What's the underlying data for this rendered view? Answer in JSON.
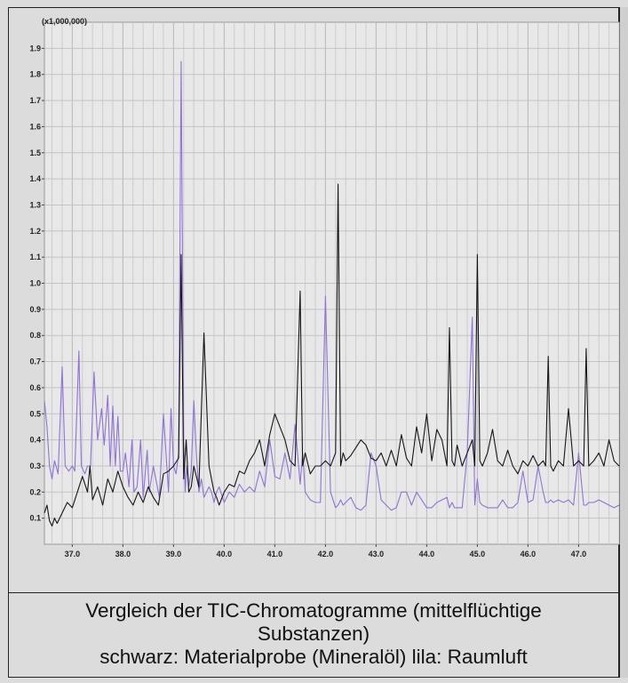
{
  "chart_data": {
    "type": "line",
    "y_scale_label": "(x1,000,000)",
    "xlim": [
      36.45,
      47.8
    ],
    "ylim": [
      0.0,
      2.0
    ],
    "x_ticks": [
      "37.0",
      "38.0",
      "39.0",
      "40.0",
      "41.0",
      "42.0",
      "43.0",
      "44.0",
      "45.0",
      "46.0",
      "47.0"
    ],
    "y_ticks": [
      "0.1",
      "0.2",
      "0.3",
      "0.4",
      "0.5",
      "0.6",
      "0.7",
      "0.8",
      "0.9",
      "1.0",
      "1.1",
      "1.2",
      "1.3",
      "1.4",
      "1.5",
      "1.6",
      "1.7",
      "1.8",
      "1.9"
    ],
    "grid": true,
    "series": [
      {
        "color": "#8f72d8",
        "x": [
          36.45,
          36.5,
          36.55,
          36.6,
          36.65,
          36.72,
          36.8,
          36.86,
          36.93,
          37.0,
          37.05,
          37.13,
          37.18,
          37.25,
          37.3,
          37.36,
          37.43,
          37.5,
          37.58,
          37.63,
          37.7,
          37.75,
          37.8,
          37.85,
          37.9,
          37.95,
          38.0,
          38.05,
          38.12,
          38.18,
          38.22,
          38.28,
          38.35,
          38.4,
          38.48,
          38.52,
          38.6,
          38.68,
          38.72,
          38.8,
          38.9,
          38.95,
          39.0,
          39.05,
          39.1,
          39.15,
          39.2,
          39.23,
          39.26,
          39.3,
          39.35,
          39.4,
          39.45,
          39.5,
          39.55,
          39.6,
          39.7,
          39.75,
          39.8,
          39.85,
          39.9,
          40.0,
          40.1,
          40.2,
          40.3,
          40.4,
          40.5,
          40.6,
          40.7,
          40.8,
          40.9,
          41.0,
          41.1,
          41.2,
          41.3,
          41.4,
          41.5,
          41.55,
          41.6,
          41.7,
          41.8,
          41.9,
          42.0,
          42.1,
          42.2,
          42.25,
          42.3,
          42.35,
          42.4,
          42.5,
          42.6,
          42.7,
          42.8,
          42.9,
          43.0,
          43.1,
          43.2,
          43.3,
          43.4,
          43.5,
          43.6,
          43.7,
          43.8,
          43.9,
          44.0,
          44.1,
          44.2,
          44.3,
          44.4,
          44.45,
          44.5,
          44.55,
          44.6,
          44.7,
          44.8,
          44.9,
          44.95,
          45.0,
          45.05,
          45.1,
          45.2,
          45.3,
          45.4,
          45.5,
          45.6,
          45.7,
          45.8,
          45.9,
          46.0,
          46.1,
          46.2,
          46.3,
          46.35,
          46.4,
          46.45,
          46.5,
          46.6,
          46.7,
          46.8,
          46.9,
          47.0,
          47.1,
          47.15,
          47.2,
          47.3,
          47.4,
          47.5,
          47.6,
          47.7,
          47.8
        ],
        "y": [
          0.55,
          0.45,
          0.3,
          0.25,
          0.32,
          0.27,
          0.68,
          0.3,
          0.28,
          0.3,
          0.28,
          0.74,
          0.3,
          0.27,
          0.3,
          0.3,
          0.66,
          0.4,
          0.52,
          0.38,
          0.57,
          0.3,
          0.53,
          0.3,
          0.49,
          0.28,
          0.28,
          0.35,
          0.22,
          0.4,
          0.2,
          0.22,
          0.4,
          0.18,
          0.36,
          0.2,
          0.3,
          0.22,
          0.18,
          0.5,
          0.2,
          0.52,
          0.3,
          0.27,
          0.35,
          1.85,
          0.4,
          0.2,
          0.3,
          0.22,
          0.28,
          0.55,
          0.35,
          0.2,
          0.25,
          0.18,
          0.22,
          0.2,
          0.16,
          0.2,
          0.22,
          0.16,
          0.2,
          0.18,
          0.23,
          0.2,
          0.22,
          0.2,
          0.28,
          0.22,
          0.4,
          0.26,
          0.25,
          0.35,
          0.25,
          0.46,
          0.23,
          0.35,
          0.2,
          0.17,
          0.16,
          0.16,
          0.95,
          0.2,
          0.14,
          0.15,
          0.17,
          0.15,
          0.16,
          0.18,
          0.14,
          0.13,
          0.15,
          0.35,
          0.3,
          0.17,
          0.15,
          0.13,
          0.14,
          0.2,
          0.2,
          0.15,
          0.2,
          0.17,
          0.14,
          0.14,
          0.16,
          0.17,
          0.18,
          0.14,
          0.16,
          0.14,
          0.14,
          0.14,
          0.35,
          0.87,
          0.15,
          0.25,
          0.16,
          0.15,
          0.14,
          0.14,
          0.14,
          0.17,
          0.14,
          0.14,
          0.16,
          0.28,
          0.16,
          0.17,
          0.3,
          0.2,
          0.16,
          0.16,
          0.17,
          0.16,
          0.17,
          0.16,
          0.17,
          0.15,
          0.35,
          0.15,
          0.15,
          0.16,
          0.16,
          0.17,
          0.16,
          0.15,
          0.14,
          0.15
        ]
      },
      {
        "color": "#151515",
        "x": [
          36.45,
          36.5,
          36.55,
          36.6,
          36.65,
          36.7,
          36.8,
          36.9,
          37.0,
          37.1,
          37.2,
          37.3,
          37.35,
          37.4,
          37.5,
          37.6,
          37.7,
          37.8,
          37.9,
          38.0,
          38.1,
          38.2,
          38.3,
          38.4,
          38.5,
          38.6,
          38.7,
          38.8,
          38.9,
          39.0,
          39.1,
          39.15,
          39.2,
          39.25,
          39.3,
          39.35,
          39.4,
          39.5,
          39.6,
          39.7,
          39.75,
          39.8,
          39.85,
          39.9,
          40.0,
          40.1,
          40.2,
          40.3,
          40.4,
          40.5,
          40.6,
          40.7,
          40.8,
          40.9,
          41.0,
          41.1,
          41.2,
          41.3,
          41.4,
          41.5,
          41.55,
          41.6,
          41.7,
          41.8,
          41.9,
          42.0,
          42.1,
          42.2,
          42.25,
          42.3,
          42.35,
          42.4,
          42.5,
          42.6,
          42.7,
          42.8,
          42.9,
          43.0,
          43.1,
          43.2,
          43.3,
          43.4,
          43.5,
          43.6,
          43.7,
          43.8,
          43.9,
          44.0,
          44.1,
          44.2,
          44.3,
          44.4,
          44.45,
          44.5,
          44.55,
          44.6,
          44.7,
          44.8,
          44.9,
          44.95,
          45.0,
          45.05,
          45.1,
          45.2,
          45.3,
          45.4,
          45.5,
          45.6,
          45.7,
          45.8,
          45.9,
          46.0,
          46.1,
          46.2,
          46.3,
          46.35,
          46.4,
          46.45,
          46.5,
          46.6,
          46.7,
          46.8,
          46.9,
          47.0,
          47.1,
          47.15,
          47.2,
          47.3,
          47.4,
          47.5,
          47.6,
          47.7,
          47.8
        ],
        "y": [
          0.12,
          0.15,
          0.09,
          0.07,
          0.1,
          0.08,
          0.12,
          0.16,
          0.14,
          0.2,
          0.26,
          0.2,
          0.3,
          0.17,
          0.22,
          0.15,
          0.25,
          0.2,
          0.28,
          0.22,
          0.18,
          0.15,
          0.2,
          0.16,
          0.22,
          0.18,
          0.15,
          0.27,
          0.28,
          0.3,
          0.33,
          1.11,
          0.25,
          0.4,
          0.2,
          0.22,
          0.3,
          0.22,
          0.81,
          0.3,
          0.25,
          0.2,
          0.18,
          0.15,
          0.2,
          0.23,
          0.22,
          0.28,
          0.27,
          0.32,
          0.35,
          0.4,
          0.3,
          0.42,
          0.5,
          0.45,
          0.4,
          0.32,
          0.3,
          0.97,
          0.3,
          0.35,
          0.27,
          0.3,
          0.3,
          0.32,
          0.3,
          0.35,
          1.38,
          0.3,
          0.35,
          0.32,
          0.34,
          0.37,
          0.4,
          0.38,
          0.33,
          0.32,
          0.35,
          0.3,
          0.36,
          0.3,
          0.42,
          0.33,
          0.3,
          0.45,
          0.35,
          0.5,
          0.32,
          0.44,
          0.4,
          0.3,
          0.83,
          0.32,
          0.3,
          0.38,
          0.3,
          0.35,
          0.4,
          0.3,
          1.11,
          0.32,
          0.3,
          0.35,
          0.44,
          0.32,
          0.3,
          0.36,
          0.3,
          0.27,
          0.32,
          0.3,
          0.34,
          0.3,
          0.32,
          0.3,
          0.72,
          0.3,
          0.28,
          0.32,
          0.3,
          0.52,
          0.3,
          0.32,
          0.3,
          0.75,
          0.3,
          0.32,
          0.35,
          0.3,
          0.4,
          0.32,
          0.3
        ]
      }
    ]
  },
  "caption": {
    "line1": "Vergleich der TIC-Chromatogramme (mittelflüchtige",
    "line2": "Substanzen)",
    "line3": "schwarz: Materialprobe (Mineralöl) lila: Raumluft"
  }
}
